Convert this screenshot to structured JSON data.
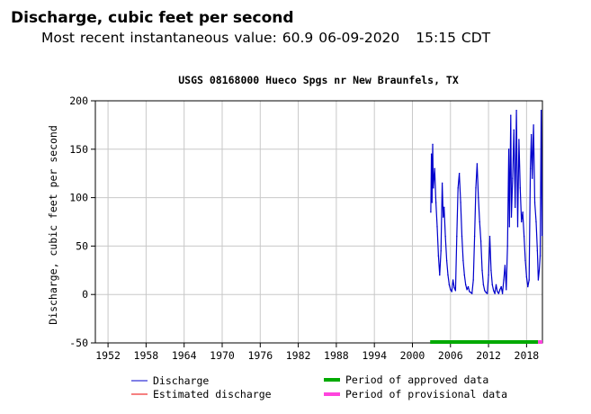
{
  "header": {
    "title": "Discharge, cubic feet per second",
    "recent_label": "Most recent instantaneous value:",
    "recent_value": "60.9",
    "recent_date": "06-09-2020",
    "recent_time": "15:15 CDT"
  },
  "chart_data": {
    "type": "line",
    "title": "USGS 08168000 Hueco Spgs nr New Braunfels, TX",
    "xlabel": "",
    "ylabel": "Discharge, cubic feet per second",
    "xlim": [
      1950,
      2020.5
    ],
    "ylim": [
      -50,
      200
    ],
    "x_ticks": [
      1952,
      1958,
      1964,
      1970,
      1976,
      1982,
      1988,
      1994,
      2000,
      2006,
      2012,
      2018
    ],
    "y_ticks": [
      200,
      150,
      100,
      50,
      0,
      -50
    ],
    "grid": true,
    "series": [
      {
        "name": "Discharge",
        "color": "#0000cc",
        "points": [
          [
            2002.9,
            85
          ],
          [
            2003.0,
            145
          ],
          [
            2003.1,
            95
          ],
          [
            2003.2,
            155
          ],
          [
            2003.3,
            110
          ],
          [
            2003.5,
            130
          ],
          [
            2003.7,
            95
          ],
          [
            2003.9,
            70
          ],
          [
            2004.1,
            40
          ],
          [
            2004.3,
            20
          ],
          [
            2004.5,
            45
          ],
          [
            2004.7,
            115
          ],
          [
            2004.85,
            80
          ],
          [
            2005.0,
            90
          ],
          [
            2005.2,
            60
          ],
          [
            2005.4,
            35
          ],
          [
            2005.6,
            20
          ],
          [
            2005.8,
            10
          ],
          [
            2006.0,
            5
          ],
          [
            2006.2,
            3
          ],
          [
            2006.4,
            15
          ],
          [
            2006.6,
            7
          ],
          [
            2006.8,
            4
          ],
          [
            2007.0,
            60
          ],
          [
            2007.2,
            110
          ],
          [
            2007.4,
            125
          ],
          [
            2007.6,
            95
          ],
          [
            2007.8,
            60
          ],
          [
            2008.0,
            35
          ],
          [
            2008.2,
            20
          ],
          [
            2008.4,
            10
          ],
          [
            2008.6,
            5
          ],
          [
            2008.8,
            8
          ],
          [
            2009.0,
            3
          ],
          [
            2009.2,
            2
          ],
          [
            2009.4,
            1
          ],
          [
            2009.6,
            15
          ],
          [
            2009.8,
            60
          ],
          [
            2010.0,
            110
          ],
          [
            2010.2,
            135
          ],
          [
            2010.4,
            100
          ],
          [
            2010.6,
            75
          ],
          [
            2010.8,
            55
          ],
          [
            2011.0,
            25
          ],
          [
            2011.2,
            10
          ],
          [
            2011.4,
            4
          ],
          [
            2011.6,
            2
          ],
          [
            2011.8,
            1
          ],
          [
            2012.0,
            20
          ],
          [
            2012.2,
            60
          ],
          [
            2012.4,
            25
          ],
          [
            2012.6,
            10
          ],
          [
            2012.8,
            4
          ],
          [
            2013.0,
            1
          ],
          [
            2013.2,
            10
          ],
          [
            2013.4,
            3
          ],
          [
            2013.6,
            1
          ],
          [
            2013.8,
            5
          ],
          [
            2014.0,
            8
          ],
          [
            2014.2,
            1
          ],
          [
            2014.4,
            15
          ],
          [
            2014.6,
            30
          ],
          [
            2014.8,
            5
          ],
          [
            2015.0,
            50
          ],
          [
            2015.2,
            150
          ],
          [
            2015.3,
            70
          ],
          [
            2015.5,
            185
          ],
          [
            2015.6,
            80
          ],
          [
            2015.8,
            120
          ],
          [
            2016.0,
            170
          ],
          [
            2016.2,
            90
          ],
          [
            2016.4,
            190
          ],
          [
            2016.6,
            70
          ],
          [
            2016.8,
            160
          ],
          [
            2017.0,
            110
          ],
          [
            2017.2,
            75
          ],
          [
            2017.4,
            85
          ],
          [
            2017.6,
            60
          ],
          [
            2017.8,
            35
          ],
          [
            2018.0,
            18
          ],
          [
            2018.2,
            8
          ],
          [
            2018.4,
            15
          ],
          [
            2018.6,
            130
          ],
          [
            2018.75,
            165
          ],
          [
            2018.9,
            120
          ],
          [
            2019.1,
            175
          ],
          [
            2019.3,
            95
          ],
          [
            2019.5,
            75
          ],
          [
            2019.7,
            45
          ],
          [
            2019.85,
            15
          ],
          [
            2020.0,
            25
          ],
          [
            2020.15,
            40
          ],
          [
            2020.3,
            190
          ],
          [
            2020.45,
            60.9
          ]
        ]
      },
      {
        "name": "Estimated discharge",
        "color": "#ee0000",
        "points": []
      }
    ],
    "period_bars": [
      {
        "name": "Period of approved data",
        "color": "#00aa00",
        "start": 2002.8,
        "end": 2019.8
      },
      {
        "name": "Period of provisional data",
        "color": "#ff44dd",
        "start": 2019.8,
        "end": 2020.5
      }
    ],
    "legend": [
      {
        "label": "Discharge",
        "color": "#0000cc",
        "kind": "line"
      },
      {
        "label": "Estimated discharge",
        "color": "#ee0000",
        "kind": "line"
      },
      {
        "label": "Period of approved data",
        "color": "#00aa00",
        "kind": "thick"
      },
      {
        "label": "Period of provisional data",
        "color": "#ff44dd",
        "kind": "thick"
      }
    ],
    "legend_position": "bottom"
  }
}
